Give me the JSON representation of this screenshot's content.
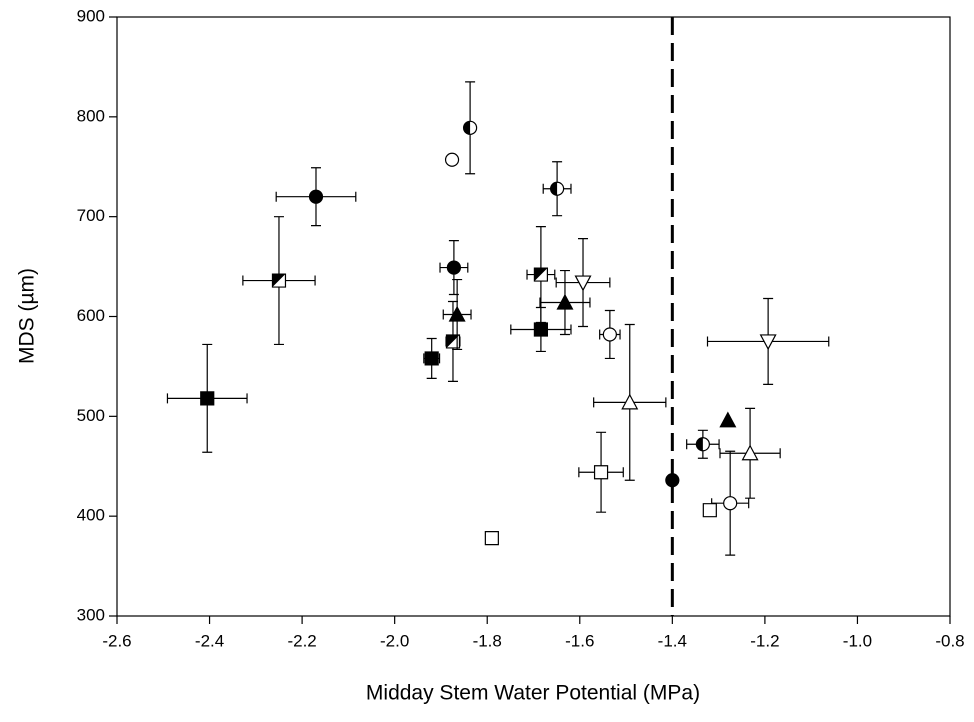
{
  "chart_data": {
    "type": "scatter",
    "x_label": "Midday Stem Water Potential (MPa)",
    "y_label": "MDS (µm)",
    "xlim": [
      -2.6,
      -0.8
    ],
    "xticks": [
      -2.6,
      -2.4,
      -2.2,
      {
        "value": -2,
        "label": "-2.0"
      },
      -1.8,
      -1.6,
      -1.4,
      -1.2,
      {
        "value": -1,
        "label": "-1.0"
      },
      -0.8
    ],
    "ylim": [
      300,
      900
    ],
    "yticks": [
      300,
      400,
      500,
      600,
      700,
      800,
      900
    ],
    "vline": -1.4,
    "color": "#000000",
    "series": [
      {
        "marker": "circle",
        "fill": "filled",
        "x": [
          -2.17,
          -1.872,
          -1.4
        ],
        "values": [
          720,
          649,
          436
        ],
        "xerr": [
          0.086,
          0.03,
          null
        ],
        "yerr": [
          29,
          27,
          null
        ]
      },
      {
        "marker": "circle",
        "fill": "half",
        "x": [
          -1.837,
          -1.649,
          -1.334
        ],
        "values": [
          789,
          728,
          472
        ],
        "xerr": [
          null,
          0.03,
          0.035
        ],
        "yerr": [
          46,
          27,
          14
        ]
      },
      {
        "marker": "circle",
        "fill": "open",
        "x": [
          -1.876,
          -1.535,
          -1.275
        ],
        "values": [
          757,
          582,
          413
        ],
        "xerr": [
          null,
          0.022,
          0.04
        ],
        "yerr": [
          null,
          24,
          52
        ]
      },
      {
        "marker": "square",
        "fill": "filled",
        "x": [
          -2.405,
          -1.92,
          -1.684
        ],
        "values": [
          518,
          558,
          587
        ],
        "xerr": [
          0.086,
          0.017,
          0.065
        ],
        "yerr": [
          54,
          20,
          22
        ]
      },
      {
        "marker": "square",
        "fill": "half",
        "x": [
          -2.25,
          -1.874,
          -1.684
        ],
        "values": [
          636,
          575,
          642
        ],
        "xerr": [
          0.078,
          0.015,
          0.03
        ],
        "yerr": [
          64,
          40,
          48
        ]
      },
      {
        "marker": "square",
        "fill": "open",
        "x": [
          -1.79,
          -1.554,
          -1.319
        ],
        "values": [
          378,
          444,
          406
        ],
        "xerr": [
          null,
          0.048,
          null
        ],
        "yerr": [
          null,
          40,
          null
        ]
      },
      {
        "marker": "triangle",
        "fill": "filled",
        "x": [
          -1.865,
          -1.632,
          -1.28
        ],
        "values": [
          602,
          614,
          496
        ],
        "xerr": [
          0.03,
          0.054,
          null
        ],
        "yerr": [
          35,
          32,
          null
        ]
      },
      {
        "marker": "triangle",
        "fill": "open",
        "x": [
          -1.492,
          -1.232
        ],
        "values": [
          514,
          463
        ],
        "xerr": [
          0.078,
          0.065
        ],
        "yerr": [
          78,
          45
        ]
      },
      {
        "marker": "triangle-down",
        "fill": "open",
        "x": [
          -1.593,
          -1.193
        ],
        "values": [
          634,
          575
        ],
        "xerr": [
          0.058,
          0.131
        ],
        "yerr": [
          44,
          43
        ]
      }
    ]
  }
}
